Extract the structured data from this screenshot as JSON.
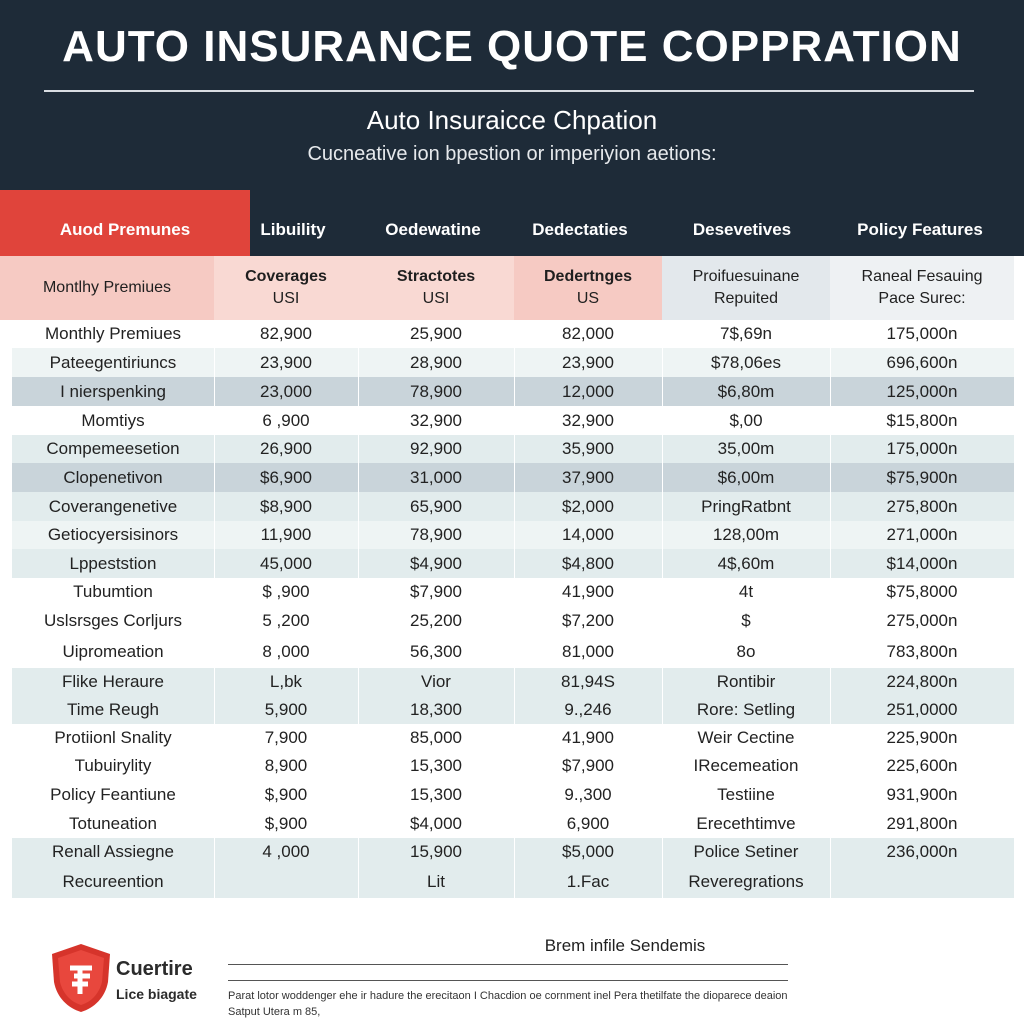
{
  "header": {
    "title": "AUTO INSURANCE QUOTE COPPRATION",
    "subtitle": "Auto Insuraicce Chpation",
    "tagline": "Cucneative ion bpestion  or imperiyion aetions:"
  },
  "colors": {
    "navy": "#1e2b38",
    "accent_red": "#e0443b",
    "pink": "#f6cac3",
    "grey": "#e3e8ec"
  },
  "chart_data": {
    "type": "table",
    "title": "AUTO INSURANCE QUOTE COPPRATION",
    "columns": [
      "Auod Premunes",
      "Libuility",
      "Oedewatine",
      "Dedectaties",
      "Desevetives",
      "Policy Features"
    ],
    "subheaders": [
      [
        "Montlhy Premiues"
      ],
      [
        "Coverages",
        "USI"
      ],
      [
        "Stractotes",
        "USI"
      ],
      [
        "Dedertnges",
        "US"
      ],
      [
        "Proifuesuinane",
        "Repuited"
      ],
      [
        "Raneal Fesauing",
        "Pace Surec:"
      ]
    ],
    "rows": [
      [
        "Monthly Premiues",
        "82,900",
        "25,900",
        "82,000",
        "7$,69n",
        "175,000n"
      ],
      [
        "Pateegentiriuncs",
        "23,900",
        "28,900",
        "23,900",
        "$78,06es",
        "696,600n"
      ],
      [
        "I nierspenking",
        "23,000",
        "78,900",
        "12,000",
        "$6,80m",
        "125,000n"
      ],
      [
        "Momtiys",
        "6 ,900",
        "32,900",
        "32,900",
        "$,00",
        "$15,800n"
      ],
      [
        "Compemeesetion",
        "26,900",
        "92,900",
        "35,900",
        "35,00m",
        "175,000n"
      ],
      [
        "Clopenetivon",
        "$6,900",
        "31,000",
        "37,900",
        "$6,00m",
        "$75,900n"
      ],
      [
        "Coverangenetive",
        "$8,900",
        "65,900",
        "$2,000",
        "PringRatbnt",
        "275,800n"
      ],
      [
        "Getiocyersisinors",
        "11,900",
        "78,900",
        "14,000",
        "128,00m",
        "271,000n"
      ],
      [
        "Lppeststion",
        "45,000",
        "$4,900",
        "$4,800",
        "4$,60m",
        "$14,000n"
      ],
      [
        "Tubumtion",
        "$ ,900",
        "$7,900",
        "41,900",
        "4t",
        "$75,8000"
      ],
      [
        "Uslsrsges Corljurs",
        "5 ,200",
        "25,200",
        "$7,200",
        "$",
        "275,000n"
      ],
      [
        "Uipromeation",
        "8 ,000",
        "56,300",
        "81,000",
        "8o",
        "783,800n"
      ],
      [
        "Flike Heraure",
        "L,bk",
        "Vior",
        "81,94S",
        "Rontibir",
        "224,800n"
      ],
      [
        "Time Reugh",
        "5,900",
        "18,300",
        "9.,246",
        "Rore: Setling",
        "251,0000"
      ],
      [
        "Protiionl Snality",
        "7,900",
        "85,000",
        "41,900",
        "Weir Cectine",
        "225,900n"
      ],
      [
        "Tubuirylity",
        "8,900",
        "15,300",
        "$7,900",
        "IRecemeation",
        "225,600n"
      ],
      [
        "Policy Feantiune",
        "$,900",
        "15,300",
        "9.,300",
        "Testiine",
        "931,900n"
      ],
      [
        "Totuneation",
        "$,900",
        "$4,000",
        "6,900",
        "Erecethtimve",
        "291,800n"
      ],
      [
        "Renall Assiegne",
        "4 ,000",
        "15,900",
        "$5,000",
        "Police Setiner",
        "236,000n"
      ],
      [
        "Recureention",
        "",
        "Lit",
        "1.Fac",
        "Reveregrations",
        ""
      ]
    ]
  },
  "footer": {
    "title": "Brem infile Sendemis",
    "note": "Parat lotor woddenger ehe ir hadure the erecitaon I Chacdion oe cornment inel Pera thetilfate the dioparece deaion Satput Utera m 85,",
    "logo_line1": "Cuertire",
    "logo_line2": "Lice biagate"
  }
}
